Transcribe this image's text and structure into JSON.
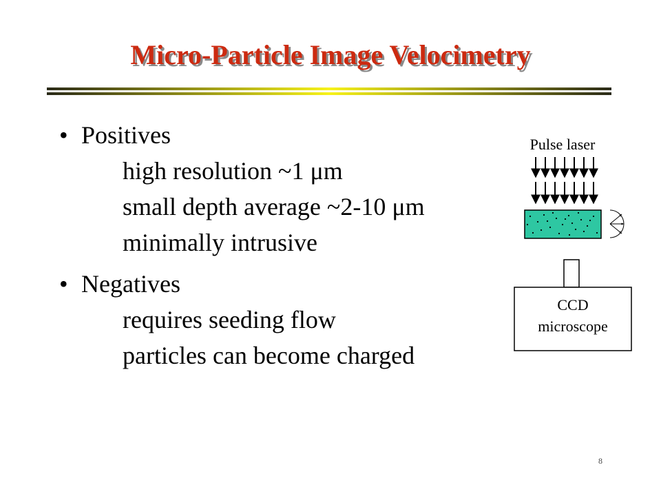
{
  "title": "Micro-Particle Image Velocimetry",
  "colors": {
    "title": "#cc2a10",
    "title_shadow": "#8a8a8a",
    "sample": "#2ec7a2",
    "rule_dark": "#2a2a18",
    "rule_bright": "#f7f21a"
  },
  "bullets": [
    {
      "label": "Positives",
      "items": [
        "high resolution  ~1 μm",
        "small depth average ~2-10 μm",
        "minimally intrusive"
      ]
    },
    {
      "label": "Negatives",
      "items": [
        "requires seeding flow",
        "particles can become charged"
      ]
    }
  ],
  "diagram": {
    "laser_label": "Pulse laser",
    "ccd_line1": "CCD",
    "ccd_line2": "microscope"
  },
  "page_number": "8"
}
